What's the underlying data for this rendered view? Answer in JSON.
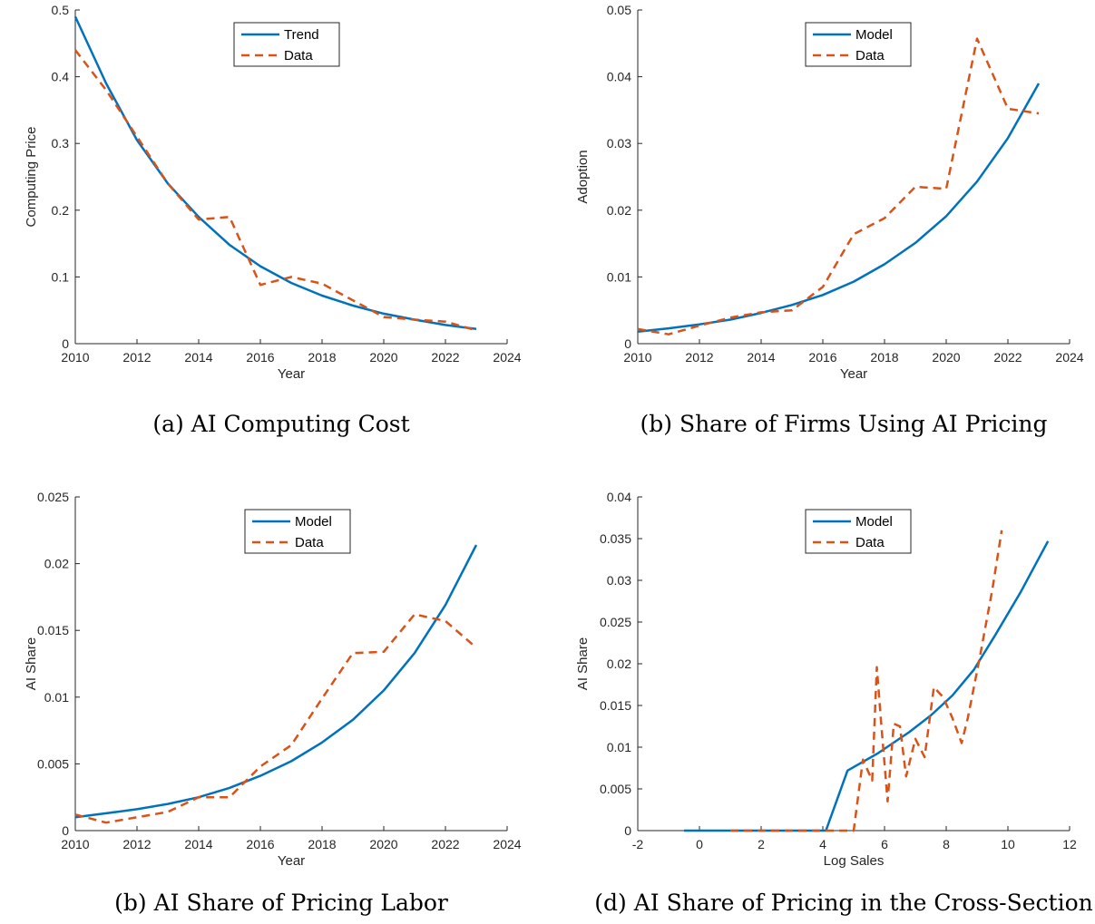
{
  "colors": {
    "model": "#0072BD",
    "data": "#D95319",
    "axis": "#262626"
  },
  "chart_data": [
    {
      "type": "line",
      "caption": "(a) AI Computing Cost",
      "xlabel": "Year",
      "ylabel": "Computing Price",
      "xlim": [
        2010,
        2024
      ],
      "ylim": [
        0,
        0.5
      ],
      "xticks": [
        2010,
        2012,
        2014,
        2016,
        2018,
        2020,
        2022,
        2024
      ],
      "xtick_labels": [
        "2010",
        "2012",
        "2014",
        "2016",
        "2018",
        "2020",
        "2022",
        "2024"
      ],
      "yticks": [
        0,
        0.1,
        0.2,
        0.3,
        0.4,
        0.5
      ],
      "ytick_labels": [
        "0",
        "0.1",
        "0.2",
        "0.3",
        "0.4",
        "0.5"
      ],
      "legend_position": "top-center",
      "series": [
        {
          "name": "Trend",
          "style": "solid",
          "x": [
            2010,
            2011,
            2012,
            2013,
            2014,
            2015,
            2016,
            2017,
            2018,
            2019,
            2020,
            2021,
            2022,
            2023
          ],
          "y": [
            0.49,
            0.39,
            0.305,
            0.24,
            0.19,
            0.148,
            0.116,
            0.091,
            0.072,
            0.057,
            0.045,
            0.036,
            0.028,
            0.022
          ]
        },
        {
          "name": "Data",
          "style": "dashed",
          "x": [
            2010,
            2011,
            2012,
            2013,
            2014,
            2015,
            2016,
            2017,
            2018,
            2019,
            2020,
            2021,
            2022,
            2023
          ],
          "y": [
            0.44,
            0.38,
            0.31,
            0.24,
            0.186,
            0.19,
            0.088,
            0.1,
            0.09,
            0.065,
            0.04,
            0.036,
            0.033,
            0.02
          ]
        }
      ]
    },
    {
      "type": "line",
      "caption": "(b) Share of Firms Using AI Pricing",
      "xlabel": "Year",
      "ylabel": "Adoption",
      "xlim": [
        2010,
        2024
      ],
      "ylim": [
        0,
        0.05
      ],
      "xticks": [
        2010,
        2012,
        2014,
        2016,
        2018,
        2020,
        2022,
        2024
      ],
      "xtick_labels": [
        "2010",
        "2012",
        "2014",
        "2016",
        "2018",
        "2020",
        "2022",
        "2024"
      ],
      "yticks": [
        0,
        0.01,
        0.02,
        0.03,
        0.04,
        0.05
      ],
      "ytick_labels": [
        "0",
        "0.01",
        "0.02",
        "0.03",
        "0.04",
        "0.05"
      ],
      "legend_position": "top-center",
      "series": [
        {
          "name": "Model",
          "style": "solid",
          "x": [
            2010,
            2011,
            2012,
            2013,
            2014,
            2015,
            2016,
            2017,
            2018,
            2019,
            2020,
            2021,
            2022,
            2023
          ],
          "y": [
            0.0018,
            0.0023,
            0.0029,
            0.0036,
            0.0046,
            0.0058,
            0.0073,
            0.0093,
            0.0119,
            0.0151,
            0.0191,
            0.0243,
            0.0308,
            0.039
          ]
        },
        {
          "name": "Data",
          "style": "dashed",
          "x": [
            2010,
            2011,
            2012,
            2013,
            2014,
            2015,
            2016,
            2017,
            2018,
            2019,
            2020,
            2021,
            2022,
            2023
          ],
          "y": [
            0.0022,
            0.0014,
            0.0027,
            0.0039,
            0.0047,
            0.005,
            0.0085,
            0.0164,
            0.0188,
            0.0235,
            0.0232,
            0.0457,
            0.0352,
            0.0345
          ]
        }
      ]
    },
    {
      "type": "line",
      "caption": "(b) AI Share of Pricing Labor",
      "xlabel": "Year",
      "ylabel": "AI Share",
      "xlim": [
        2010,
        2024
      ],
      "ylim": [
        0,
        0.025
      ],
      "xticks": [
        2010,
        2012,
        2014,
        2016,
        2018,
        2020,
        2022,
        2024
      ],
      "xtick_labels": [
        "2010",
        "2012",
        "2014",
        "2016",
        "2018",
        "2020",
        "2022",
        "2024"
      ],
      "yticks": [
        0,
        0.005,
        0.01,
        0.015,
        0.02,
        0.025
      ],
      "ytick_labels": [
        "0",
        "0.005",
        "0.01",
        "0.015",
        "0.02",
        "0.025"
      ],
      "legend_position": "top-center",
      "series": [
        {
          "name": "Model",
          "style": "solid",
          "x": [
            2010,
            2011,
            2012,
            2013,
            2014,
            2015,
            2016,
            2017,
            2018,
            2019,
            2020,
            2021,
            2022,
            2023
          ],
          "y": [
            0.001,
            0.0013,
            0.0016,
            0.002,
            0.0025,
            0.0032,
            0.0041,
            0.0052,
            0.0066,
            0.0083,
            0.0105,
            0.0133,
            0.0169,
            0.0214
          ]
        },
        {
          "name": "Data",
          "style": "dashed",
          "x": [
            2010,
            2011,
            2012,
            2013,
            2014,
            2015,
            2016,
            2017,
            2018,
            2019,
            2020,
            2021,
            2022,
            2023
          ],
          "y": [
            0.0012,
            0.0006,
            0.001,
            0.0014,
            0.0025,
            0.0025,
            0.0048,
            0.0064,
            0.0099,
            0.0133,
            0.0134,
            0.0162,
            0.0157,
            0.0137
          ]
        }
      ]
    },
    {
      "type": "line",
      "caption": "(d) AI Share of Pricing in the Cross-Section",
      "xlabel": "Log Sales",
      "ylabel": "AI Share",
      "xlim": [
        -2,
        12
      ],
      "ylim": [
        0,
        0.04
      ],
      "xticks": [
        -2,
        0,
        2,
        4,
        6,
        8,
        10,
        12
      ],
      "xtick_labels": [
        "-2",
        "0",
        "2",
        "4",
        "6",
        "8",
        "10",
        "12"
      ],
      "yticks": [
        0,
        0.005,
        0.01,
        0.015,
        0.02,
        0.025,
        0.03,
        0.035,
        0.04
      ],
      "ytick_labels": [
        "0",
        "0.005",
        "0.01",
        "0.015",
        "0.02",
        "0.025",
        "0.03",
        "0.035",
        "0.04"
      ],
      "legend_position": "top-center",
      "series": [
        {
          "name": "Model",
          "style": "solid",
          "x": [
            -0.5,
            1.0,
            2.5,
            4.1,
            4.8,
            5.8,
            6.8,
            7.5,
            8.2,
            8.9,
            9.6,
            10.4,
            11.3
          ],
          "y": [
            0,
            0,
            0,
            0,
            0.0072,
            0.0093,
            0.0118,
            0.0138,
            0.0162,
            0.0193,
            0.0235,
            0.0285,
            0.0347
          ]
        },
        {
          "name": "Data",
          "style": "dashed",
          "x": [
            1.0,
            2.0,
            3.0,
            4.0,
            5.0,
            5.3,
            5.6,
            5.75,
            5.9,
            6.1,
            6.3,
            6.5,
            6.7,
            7.0,
            7.3,
            7.6,
            7.9,
            8.2,
            8.5,
            8.7,
            9.1,
            9.5,
            9.8
          ],
          "y": [
            0,
            0,
            0,
            0,
            0,
            0.0085,
            0.006,
            0.0196,
            0.0125,
            0.0035,
            0.0128,
            0.0125,
            0.0065,
            0.011,
            0.0088,
            0.0172,
            0.016,
            0.0135,
            0.0105,
            0.0135,
            0.021,
            0.029,
            0.036
          ]
        }
      ]
    }
  ]
}
